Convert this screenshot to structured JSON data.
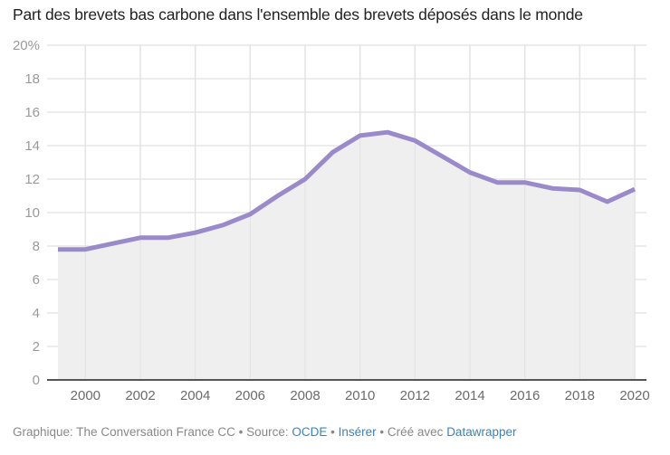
{
  "chart_data": {
    "type": "area",
    "title": "Part des brevets bas carbone dans l'ensemble des brevets déposés dans le monde",
    "xlabel": "",
    "ylabel": "",
    "x": [
      1999,
      2000,
      2001,
      2002,
      2003,
      2004,
      2005,
      2006,
      2007,
      2008,
      2009,
      2010,
      2011,
      2012,
      2013,
      2014,
      2015,
      2016,
      2017,
      2018,
      2019,
      2020
    ],
    "series": [
      {
        "name": "Part des brevets bas carbone (%)",
        "values": [
          7.8,
          7.8,
          8.15,
          8.5,
          8.5,
          8.8,
          9.25,
          9.9,
          11.0,
          12.0,
          13.6,
          14.6,
          14.8,
          14.3,
          13.35,
          12.4,
          11.8,
          11.8,
          11.45,
          11.35,
          10.65,
          11.4
        ]
      }
    ],
    "xlim": [
      1999,
      2020
    ],
    "ylim": [
      0,
      20
    ],
    "x_ticks": [
      "2000",
      "2002",
      "2004",
      "2006",
      "2008",
      "2010",
      "2012",
      "2014",
      "2016",
      "2018",
      "2020"
    ],
    "y_ticks": [
      "0",
      "2",
      "4",
      "6",
      "8",
      "10",
      "12",
      "14",
      "16",
      "18",
      "20%"
    ],
    "grid": true,
    "colors": {
      "line": "#9b8ac9",
      "fill": "#efefef",
      "grid": "#e6e6e6",
      "baseline": "#555555"
    }
  },
  "footer": {
    "prefix": "Graphique: The Conversation France CC • Source: ",
    "source_link": "OCDE",
    "sep1": " • ",
    "embed_link": "Insérer",
    "sep2": " • Créé avec ",
    "tool_link": "Datawrapper"
  }
}
